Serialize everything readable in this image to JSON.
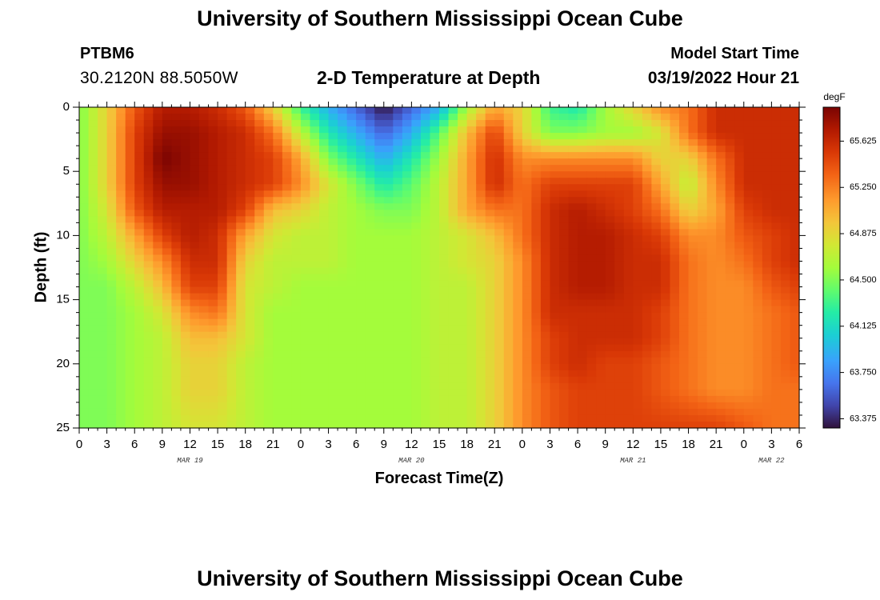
{
  "header": {
    "title": "University of Southern Mississippi Ocean Cube",
    "station_id": "PTBM6",
    "coordinates": "30.2120N  88.5050W",
    "plot_title": "2-D Temperature at Depth",
    "model_start_label": "Model Start Time",
    "model_start_value": "03/19/2022 Hour 21"
  },
  "footer": {
    "title": "University of Southern Mississippi Ocean Cube"
  },
  "chart_data": {
    "type": "heatmap",
    "title": "2-D Temperature at Depth",
    "xlabel": "Forecast Time(Z)",
    "ylabel": "Depth (ft)",
    "x_ticks": [
      "0",
      "3",
      "6",
      "9",
      "12",
      "15",
      "18",
      "21",
      "0",
      "3",
      "6",
      "9",
      "12",
      "15",
      "18",
      "21",
      "0",
      "3",
      "6",
      "9",
      "12",
      "15",
      "18",
      "21",
      "0",
      "3",
      "6"
    ],
    "x_hours": [
      0,
      78
    ],
    "date_labels": [
      {
        "label": "MAR 19",
        "hour": 12
      },
      {
        "label": "MAR 20",
        "hour": 36
      },
      {
        "label": "MAR 21",
        "hour": 60
      },
      {
        "label": "MAR 22",
        "hour": 75
      }
    ],
    "y_ticks": [
      0,
      5,
      10,
      15,
      20,
      25
    ],
    "ylim": [
      0,
      25
    ],
    "y_inverted": true,
    "grid": false,
    "colorbar": {
      "unit": "degF",
      "ticks": [
        "65.625",
        "65.250",
        "64.875",
        "64.500",
        "64.125",
        "63.750",
        "63.375"
      ],
      "range": [
        63.3,
        65.9
      ]
    },
    "grid_x_hours": [
      0,
      3,
      6,
      9,
      12,
      15,
      18,
      21,
      24,
      27,
      30,
      33,
      36,
      39,
      42,
      45,
      48,
      51,
      54,
      57,
      60,
      63,
      66,
      69,
      72,
      75,
      78
    ],
    "grid_depth_ft": [
      0,
      2,
      4,
      6,
      8,
      10,
      12,
      14,
      16,
      18,
      20,
      22,
      25
    ],
    "grid_values_degF": [
      [
        64.5,
        64.9,
        65.4,
        65.7,
        65.7,
        65.6,
        65.4,
        64.9,
        64.3,
        63.9,
        63.6,
        63.3,
        63.6,
        63.9,
        64.6,
        65.1,
        64.9,
        64.3,
        64.2,
        64.6,
        64.9,
        65.2,
        65.3,
        65.6,
        65.6,
        65.6,
        65.6
      ],
      [
        64.5,
        64.9,
        65.5,
        65.8,
        65.8,
        65.7,
        65.6,
        65.3,
        64.7,
        64.2,
        63.9,
        63.6,
        63.9,
        64.4,
        65.0,
        65.5,
        64.9,
        64.5,
        64.5,
        64.6,
        64.6,
        64.8,
        65.3,
        65.6,
        65.6,
        65.6,
        65.6
      ],
      [
        64.5,
        64.9,
        65.5,
        65.9,
        65.8,
        65.7,
        65.6,
        65.5,
        65.1,
        64.5,
        64.2,
        63.9,
        64.2,
        64.6,
        65.1,
        65.6,
        65.2,
        65.2,
        65.2,
        65.2,
        65.2,
        64.9,
        64.9,
        65.3,
        65.6,
        65.6,
        65.6
      ],
      [
        64.5,
        64.9,
        65.5,
        65.8,
        65.8,
        65.7,
        65.6,
        65.5,
        65.2,
        64.8,
        64.5,
        64.2,
        64.4,
        64.7,
        65.1,
        65.6,
        65.3,
        65.5,
        65.5,
        65.5,
        65.5,
        65.1,
        64.7,
        65.2,
        65.6,
        65.6,
        65.6
      ],
      [
        64.5,
        64.8,
        65.4,
        65.7,
        65.7,
        65.7,
        65.5,
        65.0,
        64.9,
        64.7,
        64.6,
        64.5,
        64.5,
        64.7,
        65.1,
        65.3,
        65.3,
        65.6,
        65.7,
        65.6,
        65.5,
        65.3,
        64.9,
        65.1,
        65.5,
        65.6,
        65.6
      ],
      [
        64.5,
        64.7,
        65.1,
        65.5,
        65.7,
        65.6,
        65.1,
        64.8,
        64.7,
        64.7,
        64.6,
        64.6,
        64.6,
        64.7,
        64.8,
        65.0,
        65.3,
        65.6,
        65.7,
        65.7,
        65.6,
        65.5,
        65.2,
        65.2,
        65.4,
        65.5,
        65.6
      ],
      [
        64.5,
        64.6,
        64.9,
        65.2,
        65.6,
        65.6,
        64.9,
        64.7,
        64.7,
        64.7,
        64.6,
        64.6,
        64.6,
        64.7,
        64.8,
        64.9,
        65.2,
        65.6,
        65.7,
        65.7,
        65.6,
        65.6,
        65.3,
        65.2,
        65.3,
        65.5,
        65.6
      ],
      [
        64.5,
        64.5,
        64.7,
        65.0,
        65.5,
        65.5,
        64.8,
        64.7,
        64.6,
        64.6,
        64.6,
        64.6,
        64.6,
        64.7,
        64.7,
        64.9,
        65.2,
        65.6,
        65.7,
        65.7,
        65.6,
        65.6,
        65.3,
        65.2,
        65.2,
        65.4,
        65.5
      ],
      [
        64.5,
        64.5,
        64.6,
        64.8,
        65.2,
        65.3,
        64.8,
        64.6,
        64.6,
        64.6,
        64.6,
        64.6,
        64.6,
        64.7,
        64.7,
        64.9,
        65.2,
        65.6,
        65.6,
        65.6,
        65.6,
        65.5,
        65.3,
        65.2,
        65.2,
        65.3,
        65.4
      ],
      [
        64.5,
        64.5,
        64.6,
        64.7,
        65.0,
        65.0,
        64.8,
        64.6,
        64.6,
        64.6,
        64.6,
        64.6,
        64.6,
        64.7,
        64.7,
        64.9,
        65.2,
        65.5,
        65.6,
        65.6,
        65.6,
        65.5,
        65.3,
        65.2,
        65.2,
        65.3,
        65.4
      ],
      [
        64.5,
        64.5,
        64.6,
        64.7,
        64.9,
        64.9,
        64.7,
        64.6,
        64.6,
        64.6,
        64.6,
        64.6,
        64.6,
        64.7,
        64.7,
        64.9,
        65.2,
        65.5,
        65.6,
        65.5,
        65.5,
        65.4,
        65.3,
        65.2,
        65.2,
        65.3,
        65.4
      ],
      [
        64.5,
        64.5,
        64.6,
        64.7,
        64.9,
        64.9,
        64.7,
        64.6,
        64.6,
        64.6,
        64.6,
        64.6,
        64.6,
        64.7,
        64.7,
        64.9,
        65.2,
        65.4,
        65.5,
        65.5,
        65.5,
        65.4,
        65.3,
        65.2,
        65.2,
        65.3,
        65.3
      ],
      [
        64.5,
        64.5,
        64.6,
        64.7,
        64.8,
        64.8,
        64.7,
        64.6,
        64.6,
        64.6,
        64.6,
        64.6,
        64.6,
        64.7,
        64.7,
        64.9,
        65.2,
        65.4,
        65.5,
        65.5,
        65.5,
        65.5,
        65.5,
        65.5,
        65.4,
        65.3,
        65.3
      ]
    ]
  }
}
